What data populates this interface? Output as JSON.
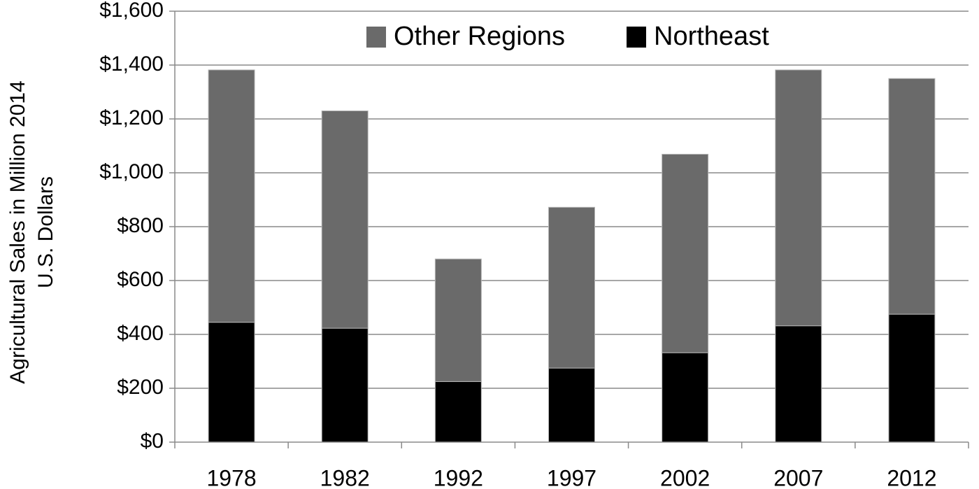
{
  "chart_data": {
    "type": "bar",
    "stacked": true,
    "categories": [
      "1978",
      "1982",
      "1992",
      "1997",
      "2002",
      "2007",
      "2012"
    ],
    "series": [
      {
        "name": "Northeast",
        "color": "#000000",
        "values": [
          445,
          423,
          225,
          275,
          332,
          432,
          475
        ]
      },
      {
        "name": "Other Regions",
        "color": "#6a6a6a",
        "values": [
          937,
          807,
          455,
          597,
          737,
          950,
          875
        ]
      }
    ],
    "ylabel": "Agricultural Sales in Million 2014 U.S. Dollars",
    "ylabel_lines": [
      "Agricultural Sales in Million 2014",
      "U.S. Dollars"
    ],
    "ylim": [
      0,
      1600
    ],
    "yticks": [
      0,
      200,
      400,
      600,
      800,
      1000,
      1200,
      1400,
      1600
    ],
    "ytick_labels": [
      "$0",
      "$200",
      "$400",
      "$600",
      "$800",
      "$1,000",
      "$1,200",
      "$1,400",
      "$1,600"
    ],
    "grid": true,
    "legend_position": "top-center",
    "legend_order": [
      "Other Regions",
      "Northeast"
    ]
  }
}
